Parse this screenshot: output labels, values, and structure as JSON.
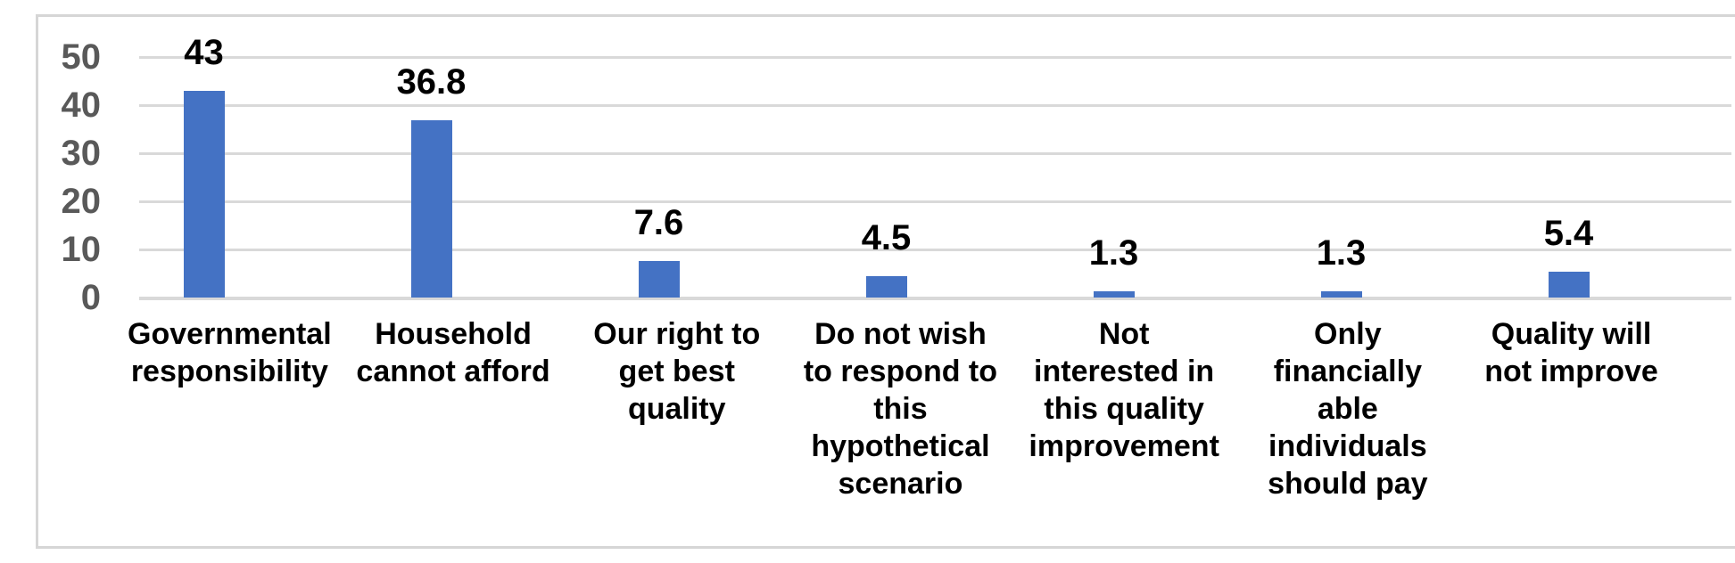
{
  "chart_data": {
    "type": "bar",
    "categories": [
      "Governmental\nresponsibility",
      "Household\ncannot afford",
      "Our right to\nget best\nquality",
      "Do not wish\nto respond to\nthis\nhypothetical\nscenario",
      "Not\ninterested in\nthis quality\nimprovement",
      "Only\nfinancially\nable\nindividuals\nshould pay",
      "Quality will\nnot improve"
    ],
    "values": [
      43,
      36.8,
      7.6,
      4.5,
      1.3,
      1.3,
      5.4
    ],
    "value_labels": [
      "43",
      "36.8",
      "7.6",
      "4.5",
      "1.3",
      "1.3",
      "5.4"
    ],
    "yticks": [
      0,
      10,
      20,
      30,
      40,
      50
    ],
    "ytick_labels": [
      "0",
      "10",
      "20",
      "30",
      "40",
      "50"
    ],
    "ylim": [
      0,
      50
    ],
    "grid": "horizontal",
    "legend": "none",
    "bar_color": "#4472C4",
    "gridline_color": "#D9D9D9",
    "axis_text_color": "#595959",
    "label_text_color": "#000000"
  }
}
